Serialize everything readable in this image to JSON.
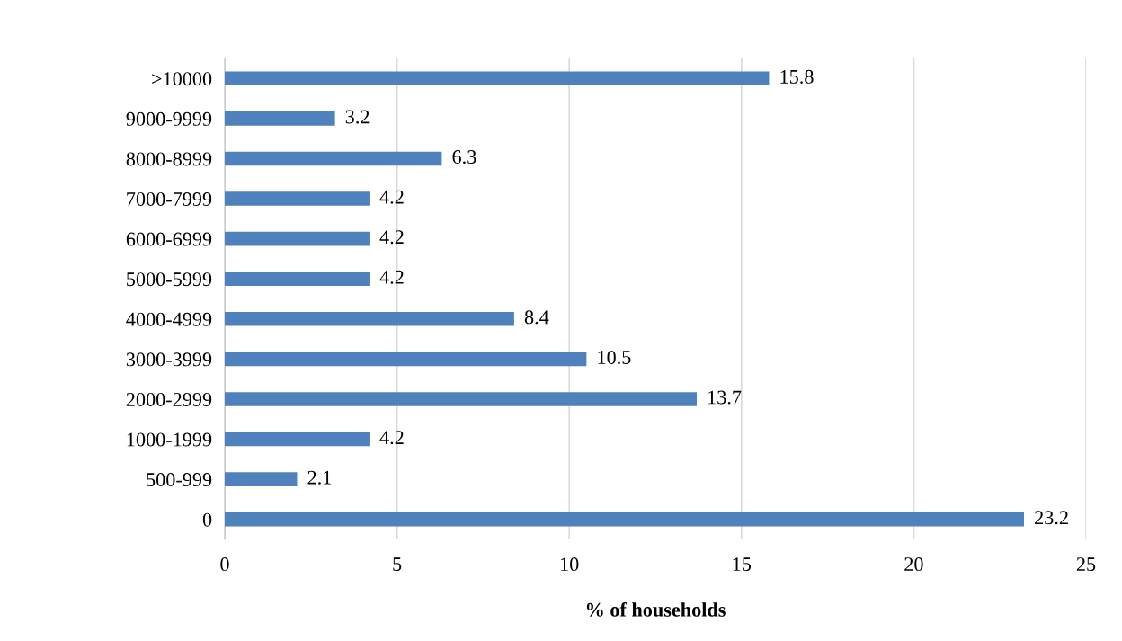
{
  "chart_data": {
    "type": "bar",
    "orientation": "horizontal",
    "xlabel": "% of households",
    "categories": [
      ">10000",
      "9000-9999",
      "8000-8999",
      "7000-7999",
      "6000-6999",
      "5000-5999",
      "4000-4999",
      "3000-3999",
      "2000-2999",
      "1000-1999",
      "500-999",
      "0"
    ],
    "values": [
      15.8,
      3.2,
      6.3,
      4.2,
      4.2,
      4.2,
      8.4,
      10.5,
      13.7,
      4.2,
      2.1,
      23.2
    ],
    "color": "#4f81bd",
    "xlim": [
      0,
      25
    ],
    "xticks": [
      0,
      5,
      10,
      15,
      20,
      25
    ],
    "grid": "x",
    "data_labels": true
  }
}
